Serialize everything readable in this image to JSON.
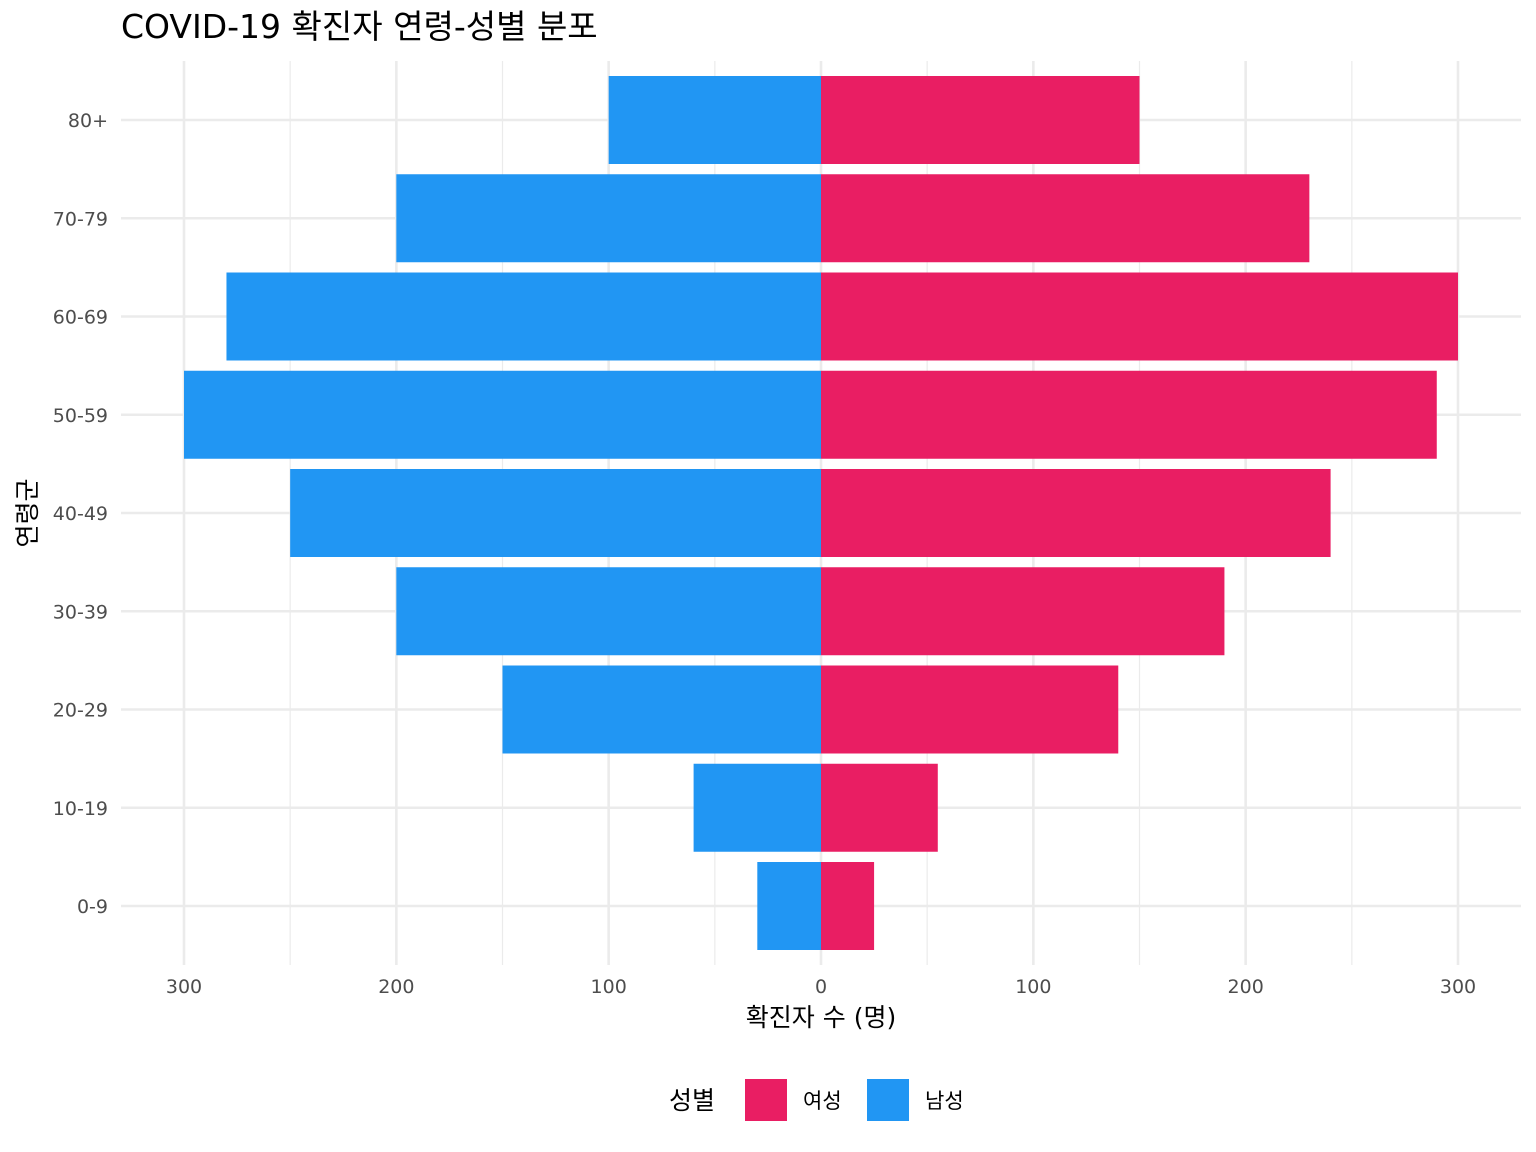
{
  "chart_data": {
    "type": "bar",
    "orientation": "horizontal",
    "subtype": "population-pyramid",
    "title": "COVID-19 확진자 연령-성별 분포",
    "xlabel": "확진자 수 (명)",
    "ylabel": "연령군",
    "categories": [
      "0-9",
      "10-19",
      "20-29",
      "30-39",
      "40-49",
      "50-59",
      "60-69",
      "70-79",
      "80+"
    ],
    "series": [
      {
        "name": "여성",
        "side": "right",
        "color": "#E91E63",
        "values": [
          25,
          55,
          140,
          190,
          240,
          290,
          300,
          230,
          150
        ]
      },
      {
        "name": "남성",
        "side": "left",
        "color": "#2196F3",
        "values": [
          30,
          60,
          150,
          200,
          250,
          300,
          280,
          200,
          100
        ]
      }
    ],
    "xlim": [
      -300,
      300
    ],
    "x_ticks": [
      -300,
      -200,
      -100,
      0,
      100,
      200,
      300
    ],
    "x_tick_labels": [
      "300",
      "200",
      "100",
      "0",
      "100",
      "200",
      "300"
    ],
    "grid": true,
    "legend": {
      "title": "성별",
      "position": "bottom",
      "entries": [
        "여성",
        "남성"
      ]
    }
  }
}
